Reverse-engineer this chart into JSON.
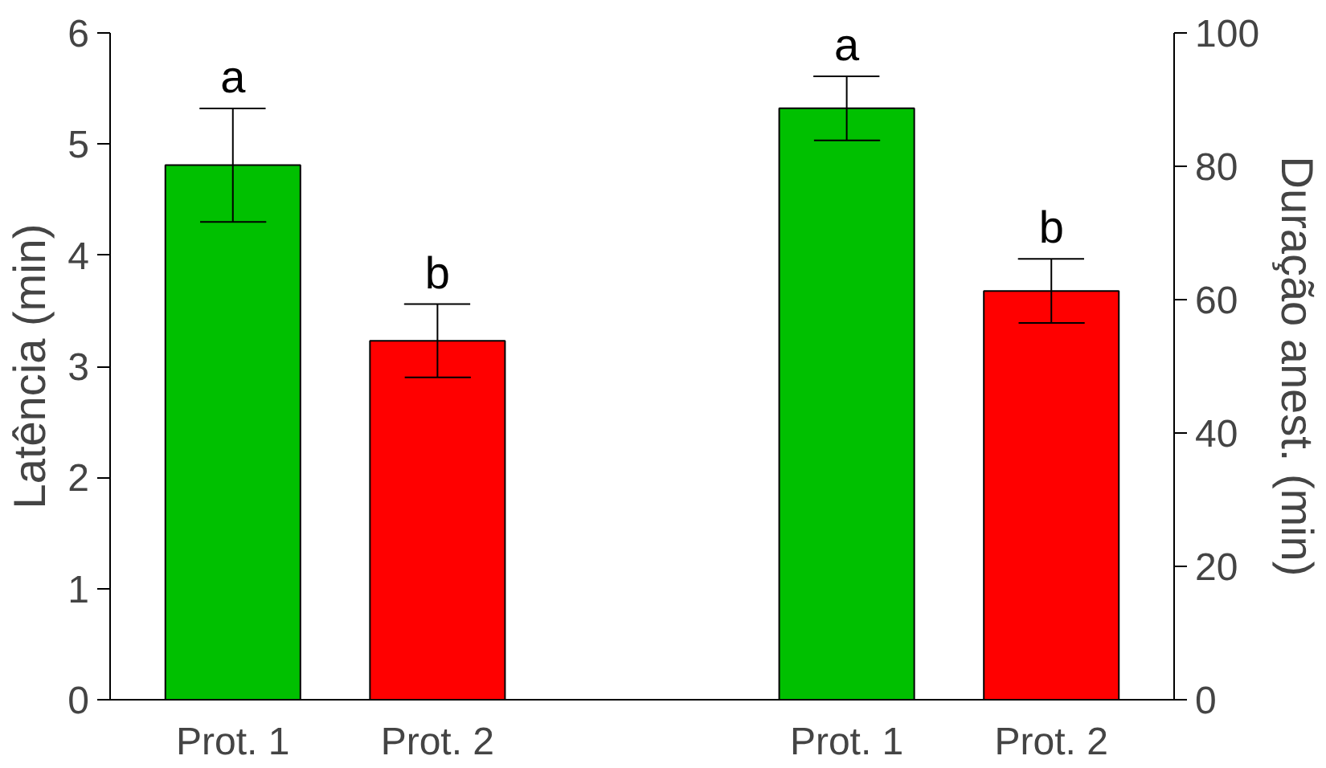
{
  "chart_data": {
    "type": "bar",
    "ylabel": "Latência (min)",
    "y2label": "Duração anest. (min)",
    "categories": [
      "Prot. 1",
      "Prot. 2",
      null,
      "Prot. 1",
      "Prot. 2"
    ],
    "series": [
      {
        "colors": [
          "#00c000",
          "#ff0000",
          null,
          null,
          null
        ],
        "values": [
          4.81,
          3.23,
          null,
          null,
          null
        ],
        "errors": [
          [
            4.3,
            5.32
          ],
          [
            2.9,
            3.56
          ],
          null,
          null,
          null
        ],
        "value_labels": [
          "a",
          "b",
          null,
          null,
          null
        ]
      },
      {
        "axis": "y2",
        "colors": [
          null,
          null,
          null,
          "#00c000",
          "#ff0000"
        ],
        "values": [
          null,
          null,
          null,
          88.7,
          61.3
        ],
        "errors": [
          null,
          null,
          null,
          [
            83.9,
            93.5
          ],
          [
            56.5,
            66.1
          ]
        ],
        "value_labels": [
          null,
          null,
          null,
          "a",
          "b"
        ]
      }
    ],
    "ylim": [
      0,
      6
    ],
    "yticks": [
      0,
      1,
      2,
      3,
      4,
      5,
      6
    ],
    "y2lim": [
      0,
      100
    ],
    "y2ticks": [
      0,
      20,
      40,
      60,
      80,
      100
    ],
    "grid": false
  }
}
